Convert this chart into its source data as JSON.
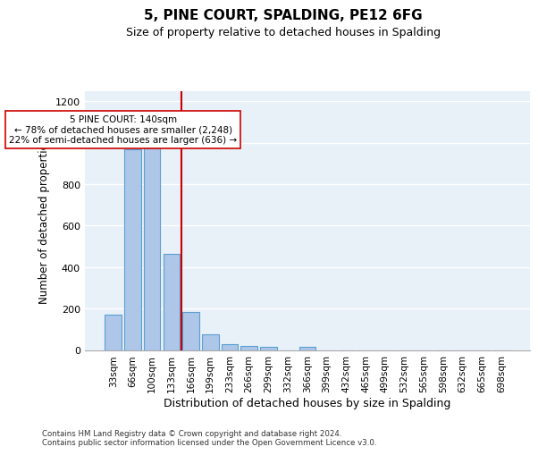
{
  "title": "5, PINE COURT, SPALDING, PE12 6FG",
  "subtitle": "Size of property relative to detached houses in Spalding",
  "xlabel": "Distribution of detached houses by size in Spalding",
  "ylabel": "Number of detached properties",
  "bar_color": "#aec6e8",
  "bar_edge_color": "#5a9fd4",
  "categories": [
    "33sqm",
    "66sqm",
    "100sqm",
    "133sqm",
    "166sqm",
    "199sqm",
    "233sqm",
    "266sqm",
    "299sqm",
    "332sqm",
    "366sqm",
    "399sqm",
    "432sqm",
    "465sqm",
    "499sqm",
    "532sqm",
    "565sqm",
    "598sqm",
    "632sqm",
    "665sqm",
    "698sqm"
  ],
  "values": [
    170,
    968,
    990,
    465,
    185,
    75,
    28,
    20,
    13,
    0,
    14,
    0,
    0,
    0,
    0,
    0,
    0,
    0,
    0,
    0,
    0
  ],
  "vline_x": 3.5,
  "vline_color": "#cc0000",
  "annotation_text": "5 PINE COURT: 140sqm\n← 78% of detached houses are smaller (2,248)\n22% of semi-detached houses are larger (636) →",
  "annotation_box_color": "white",
  "annotation_box_edge": "#cc0000",
  "ylim": [
    0,
    1250
  ],
  "yticks": [
    0,
    200,
    400,
    600,
    800,
    1000,
    1200
  ],
  "footer": "Contains HM Land Registry data © Crown copyright and database right 2024.\nContains public sector information licensed under the Open Government Licence v3.0.",
  "background_color": "#e8f0f8",
  "grid_color": "white"
}
